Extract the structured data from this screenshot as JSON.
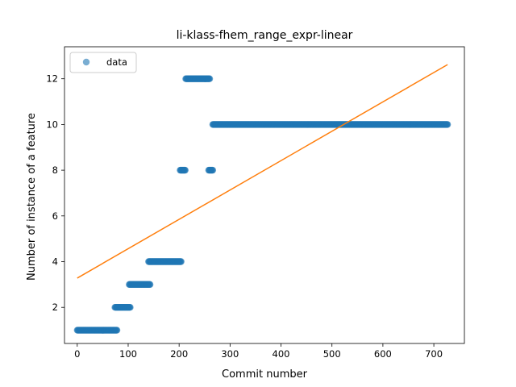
{
  "chart_data": {
    "type": "scatter",
    "title": "li-klass-fhem_range_expr-linear",
    "xlabel": "Commit number",
    "ylabel": "Number of instance of a feature",
    "xlim": [
      -25,
      760
    ],
    "ylim": [
      0.42,
      13.4
    ],
    "xticks": [
      0,
      100,
      200,
      300,
      400,
      500,
      600,
      700
    ],
    "yticks": [
      2,
      4,
      6,
      8,
      10,
      12
    ],
    "legend": {
      "position": "top-left",
      "entries": [
        "data"
      ]
    },
    "colors": {
      "data": "#1f77b4",
      "fit": "#ff7f0e"
    },
    "series": [
      {
        "name": "data",
        "kind": "scatter",
        "segments": [
          {
            "x_start": 0,
            "x_end": 78,
            "y": 1
          },
          {
            "x_start": 74,
            "x_end": 104,
            "y": 2
          },
          {
            "x_start": 102,
            "x_end": 143,
            "y": 3
          },
          {
            "x_start": 140,
            "x_end": 204,
            "y": 4
          },
          {
            "x_start": 202,
            "x_end": 212,
            "y": 8
          },
          {
            "x_start": 213,
            "x_end": 260,
            "y": 12
          },
          {
            "x_start": 258,
            "x_end": 266,
            "y": 8
          },
          {
            "x_start": 266,
            "x_end": 727,
            "y": 10
          }
        ]
      },
      {
        "kind": "line",
        "x": [
          0,
          727
        ],
        "y": [
          3.28,
          12.62
        ]
      }
    ]
  }
}
